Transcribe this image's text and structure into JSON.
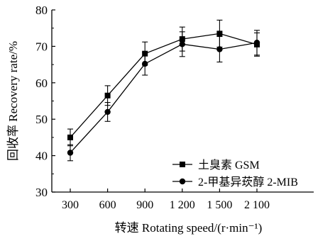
{
  "chart_data": {
    "type": "line",
    "xlabel": "转速 Rotating speed/(r·min⁻¹)",
    "ylabel": "回收率 Recovery rate/%",
    "categories": [
      "300",
      "600",
      "900",
      "1 200",
      "1 500",
      "2 100"
    ],
    "ylim": [
      30,
      80
    ],
    "yticks": [
      "30",
      "40",
      "50",
      "60",
      "70",
      "80"
    ],
    "grid": false,
    "legend_position": "bottom-right",
    "series": [
      {
        "name": "土臭素 GSM",
        "marker": "square",
        "values": [
          45.0,
          56.5,
          68.0,
          72.0,
          73.5,
          70.5
        ],
        "errors": [
          2.3,
          2.7,
          3.2,
          3.3,
          3.7,
          3.2
        ]
      },
      {
        "name": "2-甲基异莰醇 2-MIB",
        "marker": "circle",
        "values": [
          40.8,
          52.0,
          65.2,
          70.6,
          69.2,
          71.0
        ],
        "errors": [
          2.2,
          2.6,
          3.1,
          3.4,
          3.5,
          3.4
        ]
      }
    ]
  }
}
